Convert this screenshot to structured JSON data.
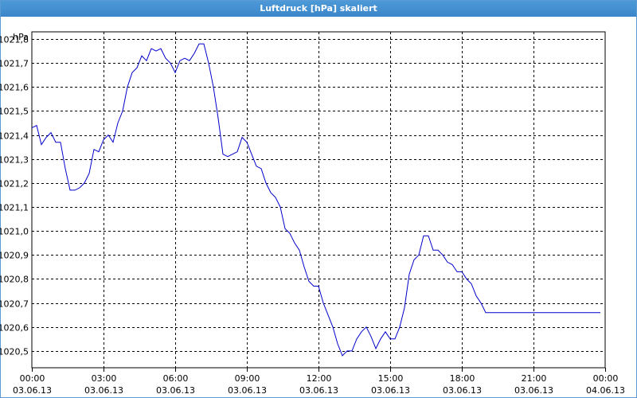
{
  "window": {
    "title": "Luftdruck [hPa] skaliert"
  },
  "chart_data": {
    "type": "line",
    "title": "Luftdruck [hPa] skaliert",
    "ylabel": "hPa",
    "xlabel": "",
    "ylim": [
      1020.43,
      1021.83
    ],
    "grid": true,
    "legend": "none",
    "line_color": "#0000cc",
    "y_ticks": [
      {
        "value": 1021.8,
        "label": "1021,8"
      },
      {
        "value": 1021.7,
        "label": "1021,7"
      },
      {
        "value": 1021.6,
        "label": "1021,6"
      },
      {
        "value": 1021.5,
        "label": "1021,5"
      },
      {
        "value": 1021.4,
        "label": "1021,4"
      },
      {
        "value": 1021.3,
        "label": "1021,3"
      },
      {
        "value": 1021.2,
        "label": "1021,2"
      },
      {
        "value": 1021.1,
        "label": "1021,1"
      },
      {
        "value": 1021.0,
        "label": "1021,0"
      },
      {
        "value": 1020.9,
        "label": "1020,9"
      },
      {
        "value": 1020.8,
        "label": "1020,8"
      },
      {
        "value": 1020.7,
        "label": "1020,7"
      },
      {
        "value": 1020.6,
        "label": "1020,6"
      },
      {
        "value": 1020.5,
        "label": "1020,5"
      }
    ],
    "x_ticks": [
      {
        "time": "03.06.13 00:00",
        "label1": "00:00",
        "label2": "03.06.13"
      },
      {
        "time": "03.06.13 03:00",
        "label1": "03:00",
        "label2": "03.06.13"
      },
      {
        "time": "03.06.13 06:00",
        "label1": "06:00",
        "label2": "03.06.13"
      },
      {
        "time": "03.06.13 09:00",
        "label1": "09:00",
        "label2": "03.06.13"
      },
      {
        "time": "03.06.13 12:00",
        "label1": "12:00",
        "label2": "03.06.13"
      },
      {
        "time": "03.06.13 15:00",
        "label1": "15:00",
        "label2": "03.06.13"
      },
      {
        "time": "03.06.13 18:00",
        "label1": "18:00",
        "label2": "03.06.13"
      },
      {
        "time": "03.06.13 21:00",
        "label1": "21:00",
        "label2": "03.06.13"
      },
      {
        "time": "04.06.13 00:00",
        "label1": "00:00",
        "label2": "04.06.13"
      }
    ],
    "series": [
      {
        "x": [
          "03.06.13 00:00",
          "03.06.13 00:12",
          "03.06.13 00:24",
          "03.06.13 00:36",
          "03.06.13 00:48",
          "03.06.13 01:00",
          "03.06.13 01:12",
          "03.06.13 01:24",
          "03.06.13 01:36",
          "03.06.13 01:48",
          "03.06.13 02:00",
          "03.06.13 02:12",
          "03.06.13 02:24",
          "03.06.13 02:36",
          "03.06.13 02:48",
          "03.06.13 03:00",
          "03.06.13 03:12",
          "03.06.13 03:24",
          "03.06.13 03:36",
          "03.06.13 03:48",
          "03.06.13 04:00",
          "03.06.13 04:12",
          "03.06.13 04:24",
          "03.06.13 04:36",
          "03.06.13 04:48",
          "03.06.13 05:00",
          "03.06.13 05:12",
          "03.06.13 05:24",
          "03.06.13 05:36",
          "03.06.13 05:48",
          "03.06.13 06:00",
          "03.06.13 06:12",
          "03.06.13 06:24",
          "03.06.13 06:36",
          "03.06.13 06:48",
          "03.06.13 07:00",
          "03.06.13 07:12",
          "03.06.13 07:24",
          "03.06.13 07:36",
          "03.06.13 07:48",
          "03.06.13 08:00",
          "03.06.13 08:12",
          "03.06.13 08:24",
          "03.06.13 08:36",
          "03.06.13 08:48",
          "03.06.13 09:00",
          "03.06.13 09:12",
          "03.06.13 09:24",
          "03.06.13 09:36",
          "03.06.13 09:48",
          "03.06.13 10:00",
          "03.06.13 10:12",
          "03.06.13 10:24",
          "03.06.13 10:36",
          "03.06.13 10:48",
          "03.06.13 11:00",
          "03.06.13 11:12",
          "03.06.13 11:24",
          "03.06.13 11:36",
          "03.06.13 11:48",
          "03.06.13 12:00",
          "03.06.13 12:12",
          "03.06.13 12:24",
          "03.06.13 12:36",
          "03.06.13 12:48",
          "03.06.13 13:00",
          "03.06.13 13:12",
          "03.06.13 13:24",
          "03.06.13 13:36",
          "03.06.13 13:48",
          "03.06.13 14:00",
          "03.06.13 14:12",
          "03.06.13 14:24",
          "03.06.13 14:36",
          "03.06.13 14:48",
          "03.06.13 15:00",
          "03.06.13 15:12",
          "03.06.13 15:24",
          "03.06.13 15:36",
          "03.06.13 15:48",
          "03.06.13 16:00",
          "03.06.13 16:12",
          "03.06.13 16:24",
          "03.06.13 16:36",
          "03.06.13 16:48",
          "03.06.13 17:00",
          "03.06.13 17:12",
          "03.06.13 17:24",
          "03.06.13 17:36",
          "03.06.13 17:48",
          "03.06.13 18:00",
          "03.06.13 18:12",
          "03.06.13 18:24",
          "03.06.13 18:36",
          "03.06.13 18:48",
          "03.06.13 19:00",
          "03.06.13 19:12",
          "03.06.13 19:24",
          "03.06.13 19:36",
          "03.06.13 19:48",
          "03.06.13 20:00",
          "03.06.13 20:12",
          "03.06.13 20:24",
          "03.06.13 20:36",
          "03.06.13 20:48",
          "03.06.13 21:00",
          "03.06.13 21:12",
          "03.06.13 21:24",
          "03.06.13 21:36",
          "03.06.13 21:48",
          "03.06.13 22:00",
          "03.06.13 22:12",
          "03.06.13 22:24",
          "03.06.13 22:36",
          "03.06.13 22:48",
          "03.06.13 23:00",
          "03.06.13 23:12",
          "03.06.13 23:24",
          "03.06.13 23:36",
          "03.06.13 23:48"
        ],
        "values": [
          1021.43,
          1021.44,
          1021.36,
          1021.39,
          1021.41,
          1021.37,
          1021.37,
          1021.26,
          1021.17,
          1021.17,
          1021.18,
          1021.2,
          1021.24,
          1021.34,
          1021.33,
          1021.38,
          1021.4,
          1021.37,
          1021.45,
          1021.5,
          1021.6,
          1021.66,
          1021.68,
          1021.73,
          1021.71,
          1021.76,
          1021.75,
          1021.76,
          1021.72,
          1021.7,
          1021.66,
          1021.71,
          1021.72,
          1021.71,
          1021.74,
          1021.78,
          1021.78,
          1021.7,
          1021.6,
          1021.47,
          1021.32,
          1021.31,
          1021.32,
          1021.33,
          1021.39,
          1021.37,
          1021.32,
          1021.27,
          1021.26,
          1021.2,
          1021.16,
          1021.14,
          1021.1,
          1021.01,
          1020.99,
          1020.95,
          1020.92,
          1020.85,
          1020.79,
          1020.77,
          1020.77,
          1020.7,
          1020.65,
          1020.6,
          1020.53,
          1020.48,
          1020.5,
          1020.5,
          1020.55,
          1020.58,
          1020.6,
          1020.56,
          1020.51,
          1020.55,
          1020.58,
          1020.55,
          1020.55,
          1020.6,
          1020.68,
          1020.82,
          1020.88,
          1020.9,
          1020.98,
          1020.98,
          1020.92,
          1020.92,
          1020.9,
          1020.87,
          1020.86,
          1020.83,
          1020.83,
          1020.8,
          1020.78,
          1020.73,
          1020.7,
          1020.66,
          1020.66,
          1020.66,
          1020.66,
          1020.66,
          1020.66,
          1020.66,
          1020.66,
          1020.66,
          1020.66,
          1020.66,
          1020.66,
          1020.66,
          1020.66,
          1020.66,
          1020.66,
          1020.66,
          1020.66,
          1020.66,
          1020.66,
          1020.66,
          1020.66,
          1020.66,
          1020.66,
          1020.66
        ]
      }
    ]
  }
}
